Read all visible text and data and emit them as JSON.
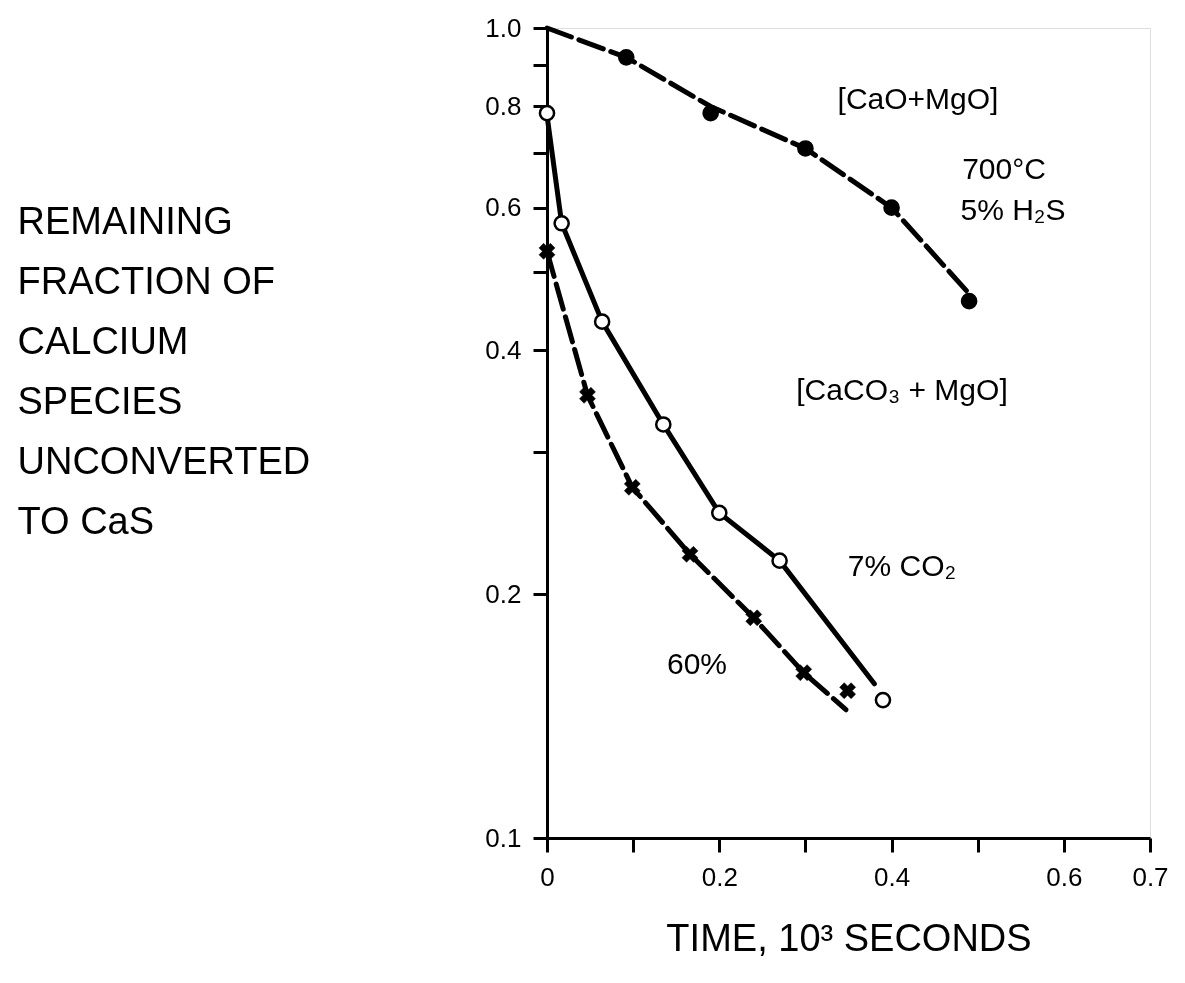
{
  "chart_data": {
    "type": "line",
    "xlabel": "TIME, 10³ SECONDS",
    "ylabel": "REMAINING\nFRACTION OF\nCALCIUM\nSPECIES\nUNCONVERTED\nTO CaS",
    "log": "y",
    "xlim": [
      0,
      0.7
    ],
    "xticks": [
      0,
      {
        "value": 0.1,
        "label": null
      },
      0.2,
      {
        "value": 0.3,
        "label": null
      },
      0.4,
      {
        "value": 0.5,
        "label": null
      },
      0.6,
      0.7
    ],
    "ylim": [
      0.1,
      1.0
    ],
    "yticks": [
      0.1,
      0.2,
      {
        "value": 0.3,
        "label": null
      },
      0.4,
      {
        "value": 0.5,
        "label": null
      },
      0.6,
      {
        "value": 0.7,
        "label": null
      },
      0.8,
      {
        "value": 0.9,
        "label": null
      },
      {
        "value": 1.0,
        "label": "1.0"
      }
    ],
    "series": [
      {
        "color": "#000000",
        "line_style": "dashed",
        "x": [
          0,
          0.092,
          0.19,
          0.3,
          0.4,
          0.49
        ],
        "values": [
          1.0,
          0.92,
          0.8,
          0.71,
          0.6,
          0.47
        ]
      },
      {
        "color": "#000000",
        "line_style": "solid",
        "x": [
          0,
          0.017,
          0.064,
          0.135,
          0.2,
          0.27,
          0.38
        ],
        "values": [
          0.78,
          0.574,
          0.434,
          0.324,
          0.252,
          0.22,
          0.155
        ]
      },
      {
        "color": "#000000",
        "line_style": "dashed",
        "x": [
          0,
          0.047,
          0.099,
          0.166,
          0.24,
          0.298,
          0.347
        ],
        "values": [
          0.53,
          0.352,
          0.271,
          0.224,
          0.187,
          0.16,
          0.144
        ]
      },
      {
        "type": "scatter",
        "color": "#000000",
        "marker": "circle",
        "x": [
          0.092,
          0.19,
          0.3,
          0.4,
          0.49
        ],
        "values": [
          0.92,
          0.785,
          0.71,
          0.6,
          0.46
        ]
      },
      {
        "type": "scatter",
        "color": "#ffffff",
        "marker": "circle",
        "x": [
          0,
          0.017,
          0.064,
          0.135,
          0.2,
          0.27,
          0.39
        ],
        "values": [
          0.785,
          0.574,
          0.434,
          0.324,
          0.252,
          0.22,
          0.148
        ]
      },
      {
        "type": "scatter",
        "color": "#000000",
        "marker": "cross",
        "x": [
          0,
          0.047,
          0.099,
          0.166,
          0.24,
          0.298,
          0.349
        ],
        "values": [
          0.53,
          0.352,
          0.271,
          0.224,
          0.187,
          0.16,
          0.152
        ]
      }
    ],
    "annotations": [
      "[CaO+MgO]",
      "700°C",
      "5% H₂S",
      "[CaCO₃ + MgO]",
      "7% CO₂",
      "60%"
    ]
  }
}
